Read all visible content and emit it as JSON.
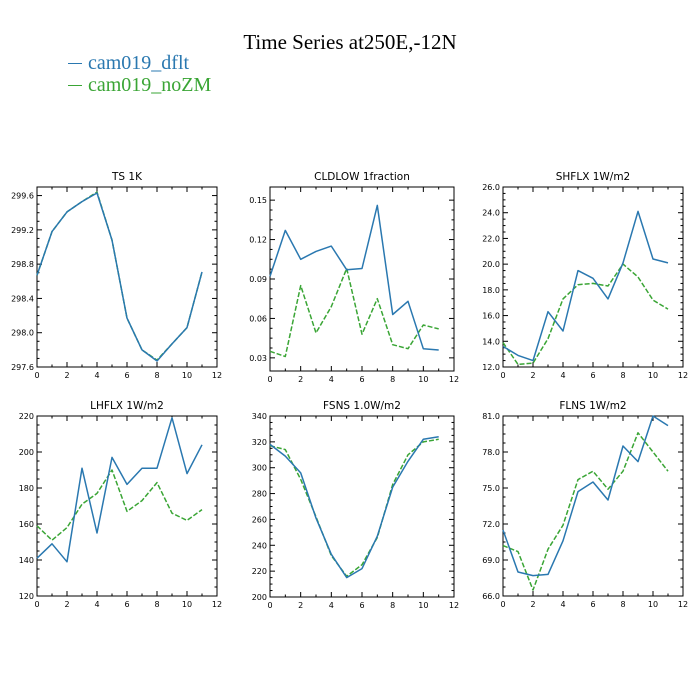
{
  "title": "Time Series at250E,-12N",
  "legend": [
    {
      "label": "cam019_dflt",
      "color": "#2a78b0"
    },
    {
      "label": "cam019_noZM",
      "color": "#3aa535"
    }
  ],
  "chart_data": [
    {
      "type": "line",
      "title": "TS   1K",
      "xlim": [
        0,
        12
      ],
      "xticks": [
        0,
        2,
        4,
        6,
        8,
        10,
        12
      ],
      "ylim": [
        297.6,
        299.7
      ],
      "yticks": [
        297.6,
        298.0,
        298.4,
        298.8,
        299.2,
        299.6
      ],
      "ytick_labels": [
        "297.6",
        "298.0",
        "298.4",
        "298.8",
        "299.2",
        "299.6"
      ],
      "x": [
        0,
        1,
        2,
        3,
        4,
        5,
        6,
        7,
        8,
        9,
        10,
        11
      ],
      "series": [
        {
          "name": "cam019_dflt",
          "values": [
            298.67,
            299.18,
            299.41,
            299.53,
            299.63,
            299.08,
            298.17,
            297.8,
            297.67,
            297.87,
            298.06,
            298.71
          ]
        },
        {
          "name": "cam019_noZM",
          "values": [
            298.67,
            299.18,
            299.41,
            299.53,
            299.64,
            299.08,
            298.17,
            297.8,
            297.68,
            297.87,
            298.06,
            298.71
          ]
        }
      ]
    },
    {
      "type": "line",
      "title": "CLDLOW   1fraction",
      "xlim": [
        0,
        12
      ],
      "xticks": [
        0,
        2,
        4,
        6,
        8,
        10,
        12
      ],
      "ylim": [
        0.02,
        0.16
      ],
      "yticks": [
        0.03,
        0.06,
        0.09,
        0.12,
        0.15
      ],
      "ytick_labels": [
        "0.03",
        "0.06",
        "0.09",
        "0.12",
        "0.15"
      ],
      "x": [
        0,
        1,
        2,
        3,
        4,
        5,
        6,
        7,
        8,
        9,
        10,
        11
      ],
      "series": [
        {
          "name": "cam019_dflt",
          "values": [
            0.092,
            0.127,
            0.105,
            0.111,
            0.115,
            0.097,
            0.098,
            0.146,
            0.063,
            0.073,
            0.037,
            0.036
          ]
        },
        {
          "name": "cam019_noZM",
          "values": [
            0.035,
            0.031,
            0.085,
            0.049,
            0.069,
            0.098,
            0.048,
            0.075,
            0.04,
            0.037,
            0.055,
            0.052
          ]
        }
      ]
    },
    {
      "type": "line",
      "title": "SHFLX   1W/m2",
      "xlim": [
        0,
        12
      ],
      "xticks": [
        0,
        2,
        4,
        6,
        8,
        10,
        12
      ],
      "ylim": [
        12.0,
        26.0
      ],
      "yticks": [
        12.0,
        14.0,
        16.0,
        18.0,
        20.0,
        22.0,
        24.0,
        26.0
      ],
      "ytick_labels": [
        "12.0",
        "14.0",
        "16.0",
        "18.0",
        "20.0",
        "22.0",
        "24.0",
        "26.0"
      ],
      "x": [
        0,
        1,
        2,
        3,
        4,
        5,
        6,
        7,
        8,
        9,
        10,
        11
      ],
      "series": [
        {
          "name": "cam019_dflt",
          "values": [
            13.6,
            12.9,
            12.5,
            16.3,
            14.8,
            19.5,
            18.9,
            17.3,
            20.1,
            24.1,
            20.4,
            20.1
          ]
        },
        {
          "name": "cam019_noZM",
          "values": [
            13.9,
            12.2,
            12.3,
            14.2,
            17.3,
            18.4,
            18.5,
            18.3,
            20.0,
            19.0,
            17.2,
            16.5
          ]
        }
      ]
    },
    {
      "type": "line",
      "title": "LHFLX   1W/m2",
      "xlim": [
        0,
        12
      ],
      "xticks": [
        0,
        2,
        4,
        6,
        8,
        10,
        12
      ],
      "ylim": [
        120,
        220
      ],
      "yticks": [
        120,
        140,
        160,
        180,
        200,
        220
      ],
      "ytick_labels": [
        "120",
        "140",
        "160",
        "180",
        "200",
        "220"
      ],
      "x": [
        0,
        1,
        2,
        3,
        4,
        5,
        6,
        7,
        8,
        9,
        10,
        11
      ],
      "series": [
        {
          "name": "cam019_dflt",
          "values": [
            141,
            149,
            139,
            191,
            155,
            197,
            182,
            191,
            191,
            219,
            188,
            204
          ]
        },
        {
          "name": "cam019_noZM",
          "values": [
            159,
            151,
            158,
            171,
            177,
            190,
            167,
            173,
            183,
            166,
            162,
            168
          ]
        }
      ]
    },
    {
      "type": "line",
      "title": "FSNS   1.0W/m2",
      "xlim": [
        0,
        12
      ],
      "xticks": [
        0,
        2,
        4,
        6,
        8,
        10,
        12
      ],
      "ylim": [
        200,
        340
      ],
      "yticks": [
        200,
        220,
        240,
        260,
        280,
        300,
        320,
        340
      ],
      "ytick_labels": [
        "200",
        "220",
        "240",
        "260",
        "280",
        "300",
        "320",
        "340"
      ],
      "x": [
        0,
        1,
        2,
        3,
        4,
        5,
        6,
        7,
        8,
        9,
        10,
        11
      ],
      "series": [
        {
          "name": "cam019_dflt",
          "values": [
            318,
            309,
            296,
            261,
            233,
            215,
            222,
            247,
            285,
            305,
            322,
            324
          ]
        },
        {
          "name": "cam019_noZM",
          "values": [
            317,
            314,
            291,
            262,
            232,
            216,
            225,
            246,
            287,
            310,
            320,
            322
          ]
        }
      ]
    },
    {
      "type": "line",
      "title": "FLNS   1W/m2",
      "xlim": [
        0,
        12
      ],
      "xticks": [
        0,
        2,
        4,
        6,
        8,
        10,
        12
      ],
      "ylim": [
        66.0,
        81.0
      ],
      "yticks": [
        66.0,
        69.0,
        72.0,
        75.0,
        78.0,
        81.0
      ],
      "ytick_labels": [
        "66.0",
        "69.0",
        "72.0",
        "75.0",
        "78.0",
        "81.0"
      ],
      "x": [
        0,
        1,
        2,
        3,
        4,
        5,
        6,
        7,
        8,
        9,
        10,
        11
      ],
      "series": [
        {
          "name": "cam019_dflt",
          "values": [
            71.5,
            68.0,
            67.7,
            67.8,
            70.6,
            74.7,
            75.5,
            74.0,
            78.5,
            77.2,
            81.0,
            80.2
          ]
        },
        {
          "name": "cam019_noZM",
          "values": [
            70.2,
            69.7,
            66.5,
            69.9,
            71.9,
            75.7,
            76.4,
            74.9,
            76.4,
            79.6,
            78.0,
            76.4
          ]
        }
      ]
    }
  ]
}
